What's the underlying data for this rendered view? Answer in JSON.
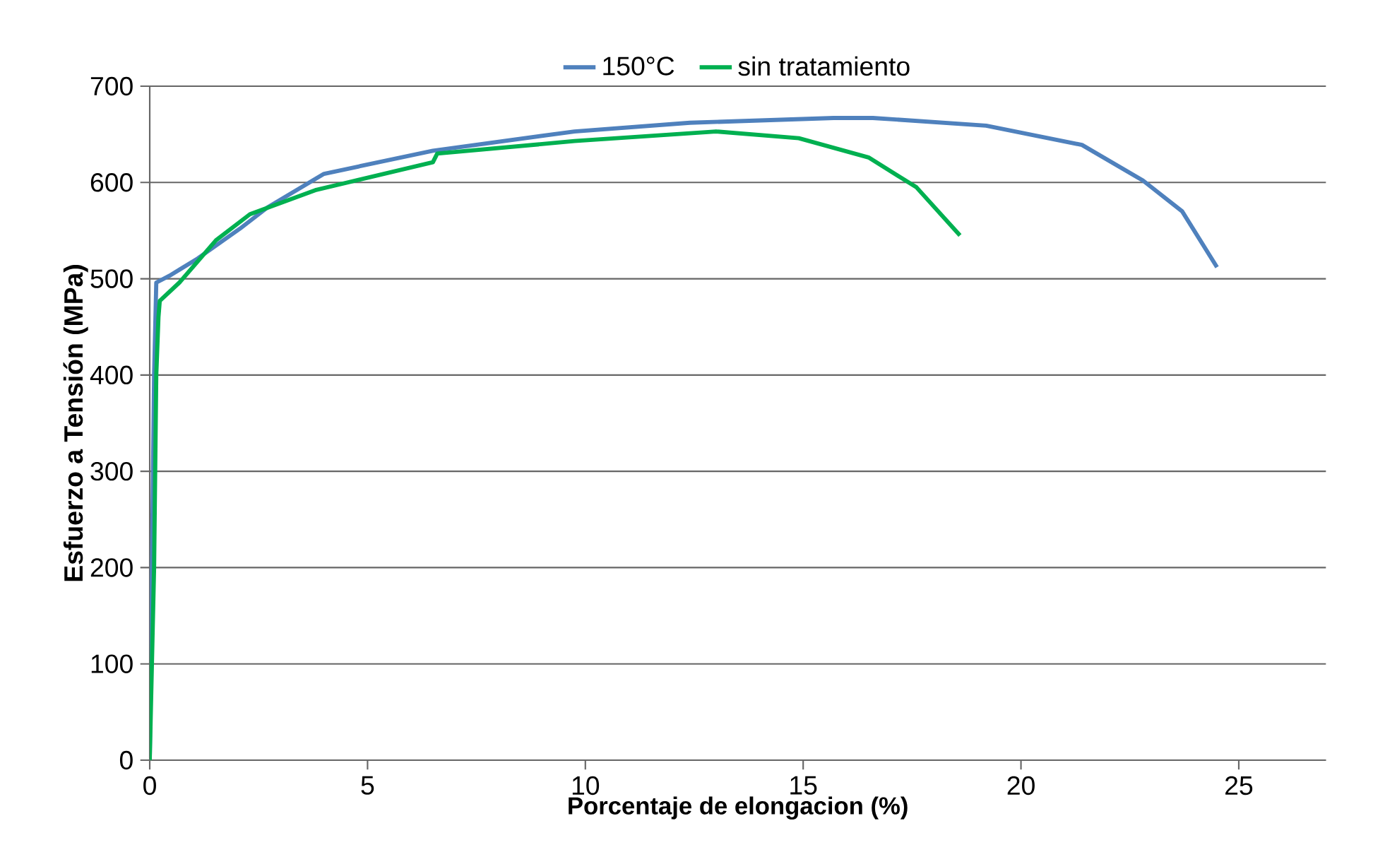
{
  "chart_data": {
    "type": "line",
    "xlabel": "Porcentaje de elongacion (%)",
    "ylabel": "Esfuerzo a Tensión (MPa)",
    "xlim": [
      0,
      27
    ],
    "ylim": [
      0,
      700
    ],
    "xticks": [
      0,
      5,
      10,
      15,
      20,
      25
    ],
    "yticks": [
      0,
      100,
      200,
      300,
      400,
      500,
      600,
      700
    ],
    "grid": "y",
    "legend": "top",
    "marker": "none",
    "line_style": "solid",
    "series": [
      {
        "name": "150°C",
        "color": "#4f81bd",
        "x": [
          0,
          0.05,
          0.1,
          0.15,
          0.45,
          1.1,
          2.07,
          2.7,
          4.0,
          6.5,
          9.75,
          12.4,
          15.7,
          16.6,
          19.2,
          21.4,
          22.8,
          23.7,
          24.5
        ],
        "values": [
          0,
          200,
          400,
          496,
          503,
          521,
          552,
          574,
          609,
          633,
          653,
          662,
          667,
          667,
          659,
          639,
          602,
          570,
          512
        ]
      },
      {
        "name": "sin tratamiento",
        "color": "#00b050",
        "x": [
          0,
          0.1,
          0.15,
          0.2,
          0.23,
          0.68,
          1.52,
          2.3,
          3.8,
          6.5,
          6.6,
          9.75,
          13,
          14.9,
          16.5,
          17.6,
          18.6
        ],
        "values": [
          0,
          200,
          400,
          460,
          477,
          496,
          540,
          567,
          592,
          621,
          630,
          643,
          653,
          646,
          626,
          595,
          545
        ]
      }
    ]
  }
}
